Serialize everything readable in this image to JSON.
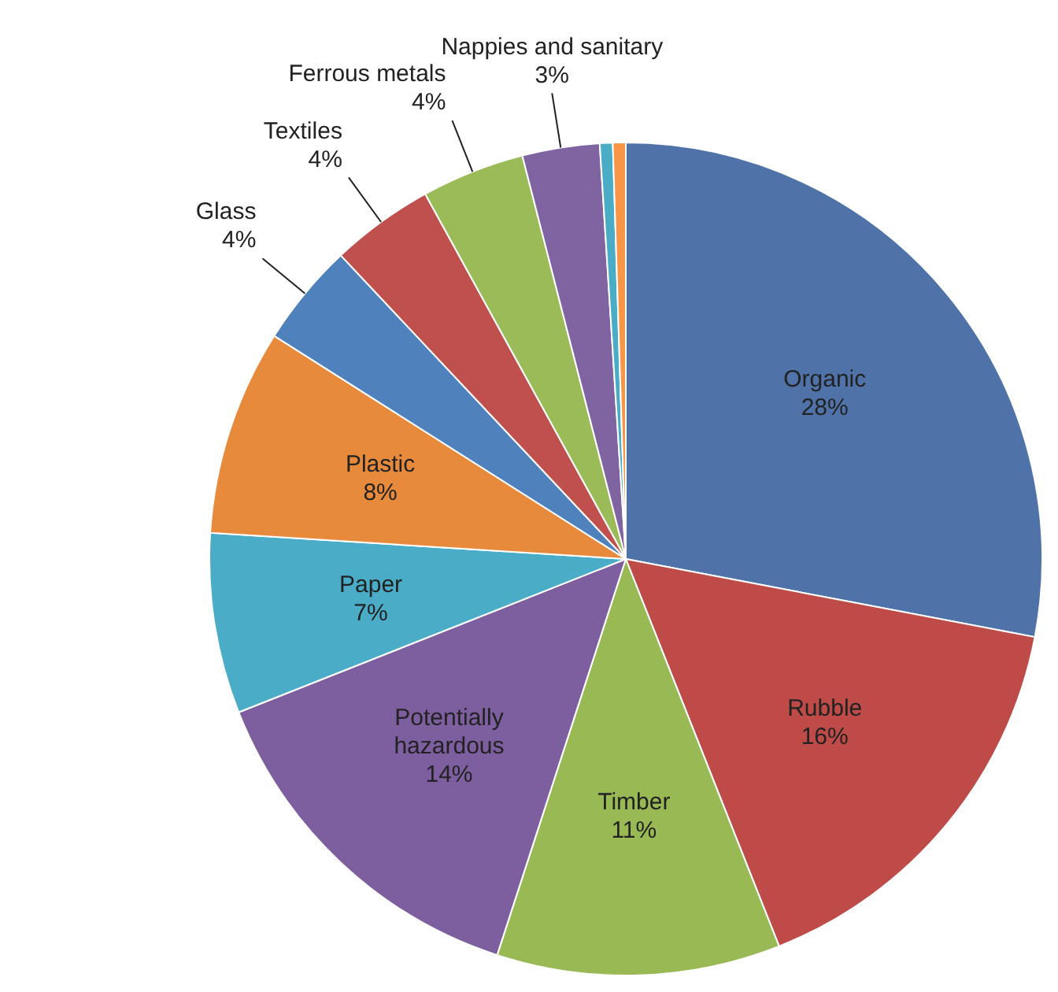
{
  "chart_data": {
    "type": "pie",
    "categories": [
      "Organic",
      "Rubble",
      "Timber",
      "Potentially hazardous",
      "Paper",
      "Plastic",
      "Glass",
      "Textiles",
      "Ferrous metals",
      "Nappies and sanitary",
      null,
      null
    ],
    "values": [
      28,
      16,
      11,
      14,
      7,
      8,
      4,
      4,
      4,
      3,
      0.5,
      0.5
    ],
    "value_labels": [
      "28%",
      "16%",
      "11%",
      "14%",
      "7%",
      "8%",
      "4%",
      "4%",
      "4%",
      "3%",
      null,
      null
    ],
    "colors": [
      "#4f73a8",
      "#be4b48",
      "#98b954",
      "#7d5fa0",
      "#4aacc6",
      "#e88a3c",
      "#4f81bd",
      "#c0504d",
      "#9bbb59",
      "#8064a2",
      "#4bacc6",
      "#f79646"
    ],
    "legend": false
  }
}
